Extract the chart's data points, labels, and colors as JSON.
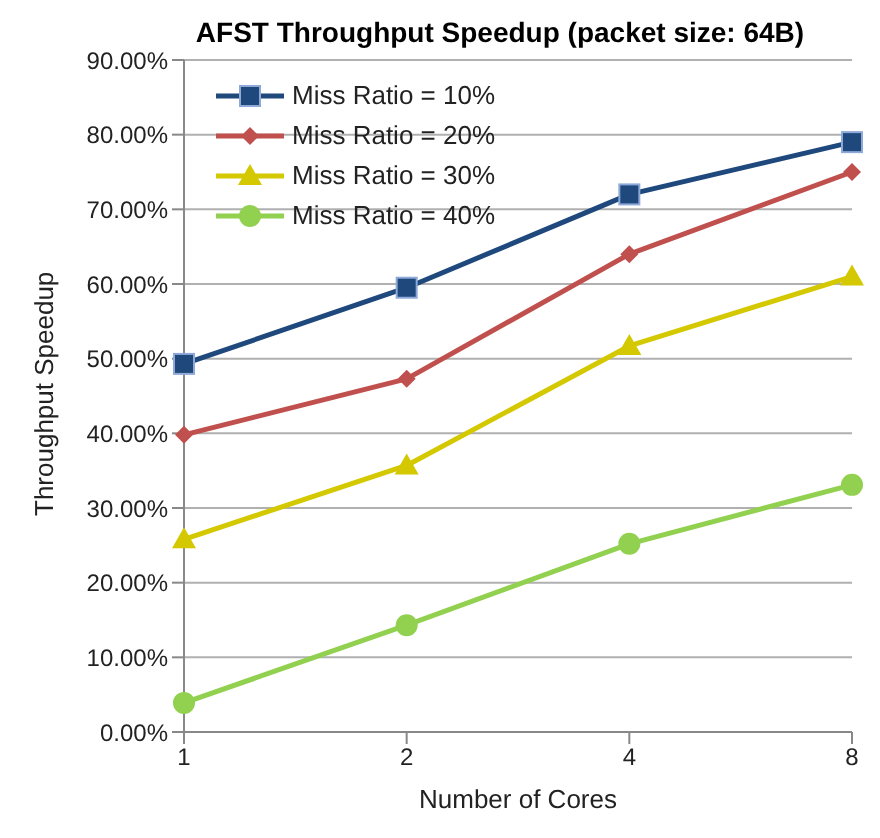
{
  "chart_data": {
    "type": "line",
    "title": "AFST Throughput Speedup (packet size: 64B)",
    "xlabel": "Number of Cores",
    "ylabel": "Throughput Speedup",
    "categories": [
      "1",
      "2",
      "4",
      "8"
    ],
    "series": [
      {
        "name": "Miss Ratio = 10%",
        "color": "#1f497d",
        "marker": "square",
        "values": [
          49.3,
          59.5,
          72.0,
          79.0
        ]
      },
      {
        "name": "Miss Ratio = 20%",
        "color": "#c0504d",
        "marker": "diamond",
        "values": [
          39.8,
          47.3,
          64.0,
          75.0
        ]
      },
      {
        "name": "Miss Ratio = 30%",
        "color": "#d4c800",
        "marker": "triangle",
        "values": [
          25.8,
          35.7,
          51.7,
          61.0
        ]
      },
      {
        "name": "Miss Ratio = 40%",
        "color": "#92d050",
        "marker": "circle",
        "values": [
          3.9,
          14.3,
          25.2,
          33.1
        ]
      }
    ],
    "ylim": [
      0,
      90
    ],
    "yticks": [
      {
        "value": 0,
        "label": "0.00%"
      },
      {
        "value": 10,
        "label": "10.00%"
      },
      {
        "value": 20,
        "label": "20.00%"
      },
      {
        "value": 30,
        "label": "30.00%"
      },
      {
        "value": 40,
        "label": "40.00%"
      },
      {
        "value": 50,
        "label": "50.00%"
      },
      {
        "value": 60,
        "label": "60.00%"
      },
      {
        "value": 70,
        "label": "70.00%"
      },
      {
        "value": 80,
        "label": "80.00%"
      },
      {
        "value": 90,
        "label": "90.00%"
      }
    ],
    "grid": "y",
    "legend": "top left",
    "line_style": "solid"
  }
}
